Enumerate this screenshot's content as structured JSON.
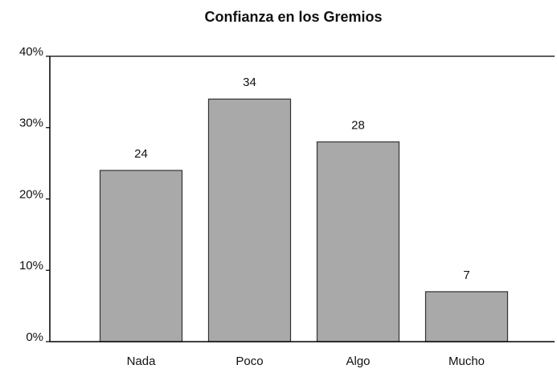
{
  "chart_data": {
    "type": "bar",
    "title": "Confianza en los Gremios",
    "categories": [
      "Nada",
      "Poco",
      "Algo",
      "Mucho"
    ],
    "values": [
      24,
      34,
      28,
      7
    ],
    "color": "#a9a9a9",
    "ylim": [
      0,
      40
    ],
    "yticks": [
      {
        "value": 0,
        "label": "0%"
      },
      {
        "value": 10,
        "label": "10%"
      },
      {
        "value": 20,
        "label": "20%"
      },
      {
        "value": 30,
        "label": "30%"
      },
      {
        "value": 40,
        "label": "40%"
      }
    ]
  }
}
